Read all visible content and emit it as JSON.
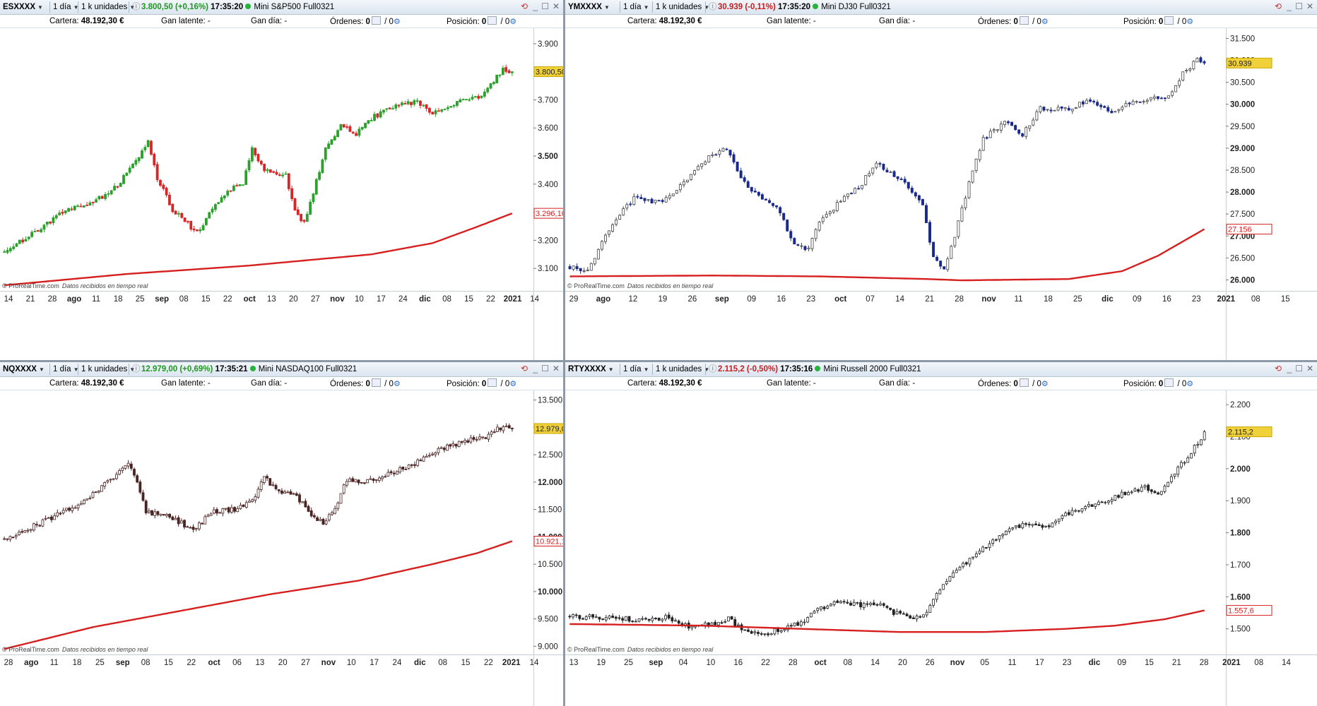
{
  "panels": [
    {
      "symbol": "ESXXXX",
      "timeframe": "1 día",
      "units": "1 k unidades",
      "price": "3.800,50 (+0,16%)",
      "price_dir": "up",
      "time": "17:35:20",
      "name": "Mini S&P500 Full0321",
      "cartera_label": "Cartera:",
      "cartera_value": "48.192,30 €",
      "gan_latente_label": "Gan latente:",
      "gan_latente_value": "-",
      "gan_dia_label": "Gan día:",
      "gan_dia_value": "-",
      "ordenes_label": "Órdenes:",
      "ordenes_value": "0",
      "ordenes_value2": "/ 0",
      "posicion_label": "Posición:",
      "posicion_value": "0",
      "posicion_value2": "/ 0",
      "copyright": "© ProRealTime.com",
      "copyright_note": "Datos recibidos en tiempo real",
      "chart_data": {
        "type": "candlestick",
        "style": "green-up-red-down",
        "y_ticks": [
          "3.900",
          "3.800",
          "3.700",
          "3.600",
          "3.500",
          "3.400",
          "3.300",
          "3.200",
          "3.100"
        ],
        "y_tick_bold": [
          "3.500"
        ],
        "ylim": [
          3020,
          3950
        ],
        "x_labels": [
          "14",
          "21",
          "28",
          "ago",
          "11",
          "18",
          "25",
          "sep",
          "08",
          "15",
          "22",
          "oct",
          "13",
          "20",
          "27",
          "nov",
          "10",
          "17",
          "24",
          "dic",
          "08",
          "15",
          "22",
          "2021",
          "14"
        ],
        "x_labels_bold": [
          "ago",
          "sep",
          "oct",
          "nov",
          "dic",
          "2021"
        ],
        "price_anchors": [
          [
            0,
            3160
          ],
          [
            10,
            3230
          ],
          [
            20,
            3305
          ],
          [
            28,
            3330
          ],
          [
            36,
            3385
          ],
          [
            44,
            3490
          ],
          [
            47,
            3560
          ],
          [
            50,
            3420
          ],
          [
            55,
            3310
          ],
          [
            60,
            3265
          ],
          [
            62,
            3230
          ],
          [
            64,
            3240
          ],
          [
            68,
            3320
          ],
          [
            74,
            3380
          ],
          [
            78,
            3400
          ],
          [
            81,
            3525
          ],
          [
            85,
            3450
          ],
          [
            92,
            3430
          ],
          [
            95,
            3310
          ],
          [
            98,
            3260
          ],
          [
            100,
            3330
          ],
          [
            105,
            3530
          ],
          [
            110,
            3605
          ],
          [
            115,
            3580
          ],
          [
            120,
            3635
          ],
          [
            128,
            3680
          ],
          [
            135,
            3695
          ],
          [
            140,
            3650
          ],
          [
            145,
            3680
          ],
          [
            150,
            3700
          ],
          [
            156,
            3710
          ],
          [
            160,
            3770
          ],
          [
            163,
            3810
          ],
          [
            166,
            3800
          ]
        ],
        "n_candles": 167,
        "last_price": 3800.5,
        "last_label": "3.800,50",
        "ma_name": "",
        "ma_label": "3.296,16",
        "ma_last": 3296.16,
        "ma_anchors": [
          [
            0,
            3040
          ],
          [
            40,
            3080
          ],
          [
            80,
            3110
          ],
          [
            120,
            3150
          ],
          [
            140,
            3190
          ],
          [
            155,
            3250
          ],
          [
            166,
            3296
          ]
        ]
      }
    },
    {
      "symbol": "YMXXXX",
      "timeframe": "1 día",
      "units": "1 k unidades",
      "price": "30.939 (-0,11%)",
      "price_dir": "down",
      "time": "17:35:20",
      "name": "Mini DJ30 Full0321",
      "cartera_label": "Cartera:",
      "cartera_value": "48.192,30 €",
      "gan_latente_label": "Gan latente:",
      "gan_latente_value": "-",
      "gan_dia_label": "Gan día:",
      "gan_dia_value": "-",
      "ordenes_label": "Órdenes:",
      "ordenes_value": "0",
      "ordenes_value2": "/ 0",
      "posicion_label": "Posición:",
      "posicion_value": "0",
      "posicion_value2": "/ 0",
      "copyright": "© ProRealTime.com",
      "copyright_note": "Datos recibidos en tiempo real",
      "chart_data": {
        "type": "candlestick",
        "style": "hollow-up-blue-down",
        "y_ticks": [
          "31.500",
          "31.000",
          "30.500",
          "30.000",
          "29.500",
          "29.000",
          "28.500",
          "28.000",
          "27.500",
          "27.000",
          "26.500",
          "26.000"
        ],
        "y_tick_bold": [
          "31.000",
          "30.000",
          "29.000",
          "28.000",
          "27.000",
          "26.000"
        ],
        "ylim": [
          25750,
          31700
        ],
        "x_labels": [
          "29",
          "ago",
          "12",
          "19",
          "26",
          "sep",
          "09",
          "16",
          "23",
          "oct",
          "07",
          "14",
          "21",
          "28",
          "nov",
          "11",
          "18",
          "25",
          "dic",
          "09",
          "16",
          "23",
          "2021",
          "08",
          "15"
        ],
        "x_labels_bold": [
          "ago",
          "sep",
          "oct",
          "nov",
          "dic",
          "2021"
        ],
        "price_anchors": [
          [
            0,
            26300
          ],
          [
            5,
            26200
          ],
          [
            12,
            27300
          ],
          [
            18,
            27850
          ],
          [
            26,
            27750
          ],
          [
            34,
            28400
          ],
          [
            39,
            28800
          ],
          [
            44,
            29000
          ],
          [
            48,
            28300
          ],
          [
            53,
            27900
          ],
          [
            58,
            27700
          ],
          [
            63,
            26800
          ],
          [
            67,
            26700
          ],
          [
            70,
            27300
          ],
          [
            76,
            27800
          ],
          [
            82,
            28200
          ],
          [
            86,
            28700
          ],
          [
            89,
            28500
          ],
          [
            94,
            28200
          ],
          [
            99,
            27700
          ],
          [
            102,
            26500
          ],
          [
            105,
            26250
          ],
          [
            108,
            27000
          ],
          [
            112,
            28200
          ],
          [
            116,
            29200
          ],
          [
            122,
            29600
          ],
          [
            127,
            29300
          ],
          [
            132,
            29900
          ],
          [
            140,
            29900
          ],
          [
            146,
            30100
          ],
          [
            152,
            29800
          ],
          [
            156,
            30000
          ],
          [
            162,
            30100
          ],
          [
            168,
            30200
          ],
          [
            172,
            30700
          ],
          [
            176,
            31000
          ],
          [
            178,
            30939
          ]
        ],
        "n_candles": 179,
        "last_price": 30939,
        "last_label": "30.939",
        "ma_name": "",
        "ma_label": "27.156",
        "ma_last": 27156,
        "ma_anchors": [
          [
            0,
            26080
          ],
          [
            40,
            26100
          ],
          [
            70,
            26080
          ],
          [
            100,
            26020
          ],
          [
            110,
            25990
          ],
          [
            140,
            26020
          ],
          [
            155,
            26200
          ],
          [
            165,
            26550
          ],
          [
            178,
            27156
          ]
        ]
      }
    },
    {
      "symbol": "NQXXXX",
      "timeframe": "1 día",
      "units": "1 k unidades",
      "price": "12.979,00 (+0,69%)",
      "price_dir": "up",
      "time": "17:35:21",
      "name": "Mini NASDAQ100 Full0321",
      "cartera_label": "Cartera:",
      "cartera_value": "48.192,30 €",
      "gan_latente_label": "Gan latente:",
      "gan_latente_value": "-",
      "gan_dia_label": "Gan día:",
      "gan_dia_value": "-",
      "ordenes_label": "Órdenes:",
      "ordenes_value": "0",
      "ordenes_value2": "/ 0",
      "posicion_label": "Posición:",
      "posicion_value": "0",
      "posicion_value2": "/ 0",
      "copyright": "© ProRealTime.com",
      "copyright_note": "Datos recibidos en tiempo real",
      "chart_data": {
        "type": "candlestick",
        "style": "hollow-up-brown-down",
        "y_ticks": [
          "13.500",
          "13.000",
          "12.500",
          "12.000",
          "11.500",
          "11.000",
          "10.500",
          "10.000",
          "9.500",
          "9.000"
        ],
        "y_tick_bold": [
          "13.000",
          "12.000",
          "11.000",
          "10.000"
        ],
        "ylim": [
          8850,
          13650
        ],
        "x_labels": [
          "28",
          "ago",
          "11",
          "18",
          "25",
          "sep",
          "08",
          "15",
          "22",
          "oct",
          "06",
          "13",
          "20",
          "27",
          "nov",
          "10",
          "17",
          "24",
          "dic",
          "08",
          "15",
          "22",
          "2021",
          "14"
        ],
        "x_labels_bold": [
          "ago",
          "sep",
          "oct",
          "nov",
          "dic",
          "2021"
        ],
        "price_anchors": [
          [
            0,
            10950
          ],
          [
            8,
            11150
          ],
          [
            14,
            11300
          ],
          [
            20,
            11450
          ],
          [
            28,
            11700
          ],
          [
            36,
            12050
          ],
          [
            42,
            12350
          ],
          [
            45,
            12000
          ],
          [
            48,
            11450
          ],
          [
            54,
            11400
          ],
          [
            60,
            11250
          ],
          [
            64,
            11100
          ],
          [
            70,
            11450
          ],
          [
            78,
            11500
          ],
          [
            84,
            11650
          ],
          [
            88,
            12100
          ],
          [
            92,
            11850
          ],
          [
            98,
            11800
          ],
          [
            104,
            11400
          ],
          [
            108,
            11250
          ],
          [
            112,
            11500
          ],
          [
            116,
            12050
          ],
          [
            122,
            12000
          ],
          [
            130,
            12150
          ],
          [
            138,
            12300
          ],
          [
            144,
            12500
          ],
          [
            150,
            12650
          ],
          [
            156,
            12750
          ],
          [
            162,
            12800
          ],
          [
            166,
            12950
          ],
          [
            170,
            13000
          ],
          [
            172,
            12979
          ]
        ],
        "n_candles": 173,
        "last_price": 12979,
        "last_label": "12.979,00",
        "ma_name": "",
        "ma_label": "10.921,16",
        "ma_last": 10921.16,
        "ma_anchors": [
          [
            0,
            8950
          ],
          [
            30,
            9350
          ],
          [
            60,
            9650
          ],
          [
            90,
            9950
          ],
          [
            120,
            10200
          ],
          [
            145,
            10500
          ],
          [
            160,
            10700
          ],
          [
            172,
            10921
          ]
        ]
      }
    },
    {
      "symbol": "RTYXXXX",
      "timeframe": "1 día",
      "units": "1 k unidades",
      "price": "2.115,2 (-0,50%)",
      "price_dir": "down",
      "time": "17:35:16",
      "name": "Mini Russell 2000 Full0321",
      "cartera_label": "Cartera:",
      "cartera_value": "48.192,30 €",
      "gan_latente_label": "Gan latente:",
      "gan_latente_value": "-",
      "gan_dia_label": "Gan día:",
      "gan_dia_value": "-",
      "ordenes_label": "Órdenes:",
      "ordenes_value": "0",
      "ordenes_value2": "/ 0",
      "posicion_label": "Posición:",
      "posicion_value": "0",
      "posicion_value2": "/ 0",
      "copyright": "© ProRealTime.com",
      "copyright_note": "Datos recibidos en tiempo real",
      "chart_data": {
        "type": "candlestick",
        "style": "hollow-up-black-down",
        "y_ticks": [
          "2.200",
          "2.100",
          "2.000",
          "1.900",
          "1.800",
          "1.700",
          "1.600",
          "1.500"
        ],
        "y_tick_bold": [
          "2.000",
          "1.800",
          "1.600"
        ],
        "ylim": [
          1420,
          2240
        ],
        "x_labels": [
          "13",
          "19",
          "25",
          "sep",
          "04",
          "10",
          "16",
          "22",
          "28",
          "oct",
          "08",
          "14",
          "20",
          "26",
          "nov",
          "05",
          "11",
          "17",
          "23",
          "dic",
          "09",
          "15",
          "21",
          "28",
          "2021",
          "08",
          "14"
        ],
        "x_labels_bold": [
          "sep",
          "oct",
          "nov",
          "dic",
          "2021"
        ],
        "price_anchors": [
          [
            0,
            1540
          ],
          [
            10,
            1535
          ],
          [
            20,
            1530
          ],
          [
            30,
            1535
          ],
          [
            36,
            1505
          ],
          [
            42,
            1515
          ],
          [
            48,
            1530
          ],
          [
            54,
            1490
          ],
          [
            58,
            1480
          ],
          [
            64,
            1500
          ],
          [
            70,
            1520
          ],
          [
            76,
            1565
          ],
          [
            82,
            1585
          ],
          [
            88,
            1575
          ],
          [
            94,
            1580
          ],
          [
            98,
            1550
          ],
          [
            104,
            1535
          ],
          [
            108,
            1555
          ],
          [
            112,
            1620
          ],
          [
            116,
            1680
          ],
          [
            122,
            1720
          ],
          [
            126,
            1760
          ],
          [
            132,
            1810
          ],
          [
            138,
            1825
          ],
          [
            144,
            1820
          ],
          [
            150,
            1855
          ],
          [
            156,
            1880
          ],
          [
            162,
            1900
          ],
          [
            168,
            1925
          ],
          [
            174,
            1940
          ],
          [
            178,
            1920
          ],
          [
            184,
            2000
          ],
          [
            190,
            2080
          ],
          [
            192,
            2115
          ]
        ],
        "n_candles": 193,
        "last_price": 2115.2,
        "last_label": "2.115,2",
        "ma_name": "",
        "ma_label": "1.557,6",
        "ma_last": 1557.6,
        "ma_anchors": [
          [
            0,
            1515
          ],
          [
            40,
            1510
          ],
          [
            70,
            1500
          ],
          [
            100,
            1490
          ],
          [
            125,
            1490
          ],
          [
            150,
            1500
          ],
          [
            165,
            1510
          ],
          [
            180,
            1530
          ],
          [
            192,
            1557.6
          ]
        ]
      }
    }
  ]
}
